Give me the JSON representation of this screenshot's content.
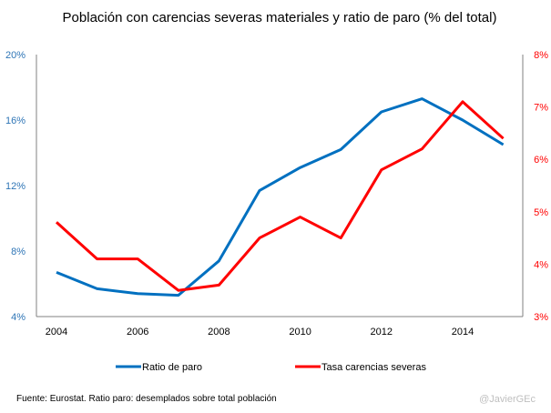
{
  "chart_data": {
    "type": "line",
    "title": "Población con carencias severas materiales y ratio de paro (% del total)",
    "xlabel": "",
    "x": [
      2004,
      2005,
      2006,
      2007,
      2008,
      2009,
      2010,
      2011,
      2012,
      2013,
      2014,
      2015
    ],
    "x_tick_labels": [
      "2004",
      "2006",
      "2008",
      "2010",
      "2012",
      "2014"
    ],
    "y_left": {
      "label": "",
      "range": [
        4,
        20
      ],
      "ticks": [
        4,
        8,
        12,
        16,
        20
      ],
      "tick_labels": [
        "4%",
        "8%",
        "12%",
        "16%",
        "20%"
      ],
      "color": "#2E75B6"
    },
    "y_right": {
      "label": "",
      "range": [
        3,
        8
      ],
      "ticks": [
        3,
        4,
        5,
        6,
        7,
        8
      ],
      "tick_labels": [
        "3%",
        "4%",
        "5%",
        "6%",
        "7%",
        "8%"
      ],
      "color": "#FF0000"
    },
    "grid": false,
    "legend_position": "bottom",
    "series": [
      {
        "name": "Ratio de paro",
        "axis": "left",
        "color": "#0070C0",
        "values": [
          6.7,
          5.7,
          5.4,
          5.3,
          7.4,
          11.7,
          13.1,
          14.2,
          16.5,
          17.3,
          16.0,
          14.5
        ]
      },
      {
        "name": "Tasa carencias severas",
        "axis": "right",
        "color": "#FF0000",
        "values": [
          4.8,
          4.1,
          4.1,
          3.5,
          3.6,
          4.5,
          4.9,
          4.5,
          5.8,
          6.2,
          7.1,
          6.4
        ]
      }
    ]
  },
  "footer": {
    "source": "Fuente: Eurostat. Ratio paro: desemplados sobre total población",
    "credit": "@JavierGEc"
  }
}
